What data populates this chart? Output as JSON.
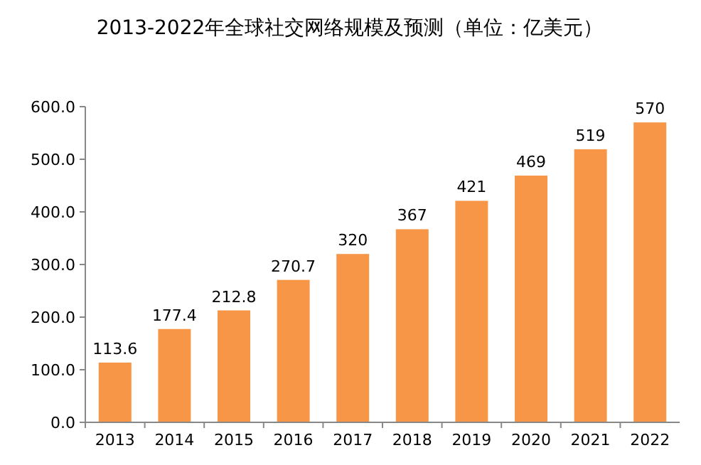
{
  "chart_data": {
    "type": "bar",
    "title": "2013-2022年全球社交网络规模及预测（单位：亿美元）",
    "categories": [
      "2013",
      "2014",
      "2015",
      "2016",
      "2017",
      "2018",
      "2019",
      "2020",
      "2021",
      "2022"
    ],
    "values": [
      113.6,
      177.4,
      212.8,
      270.7,
      320,
      367,
      421,
      469,
      519,
      570
    ],
    "color": "#f79646",
    "data_labels": true,
    "ylim": [
      0,
      600
    ],
    "yticks": [
      {
        "value": 0,
        "label": "0.0"
      },
      {
        "value": 100,
        "label": "100.0"
      },
      {
        "value": 200,
        "label": "200.0"
      },
      {
        "value": 300,
        "label": "300.0"
      },
      {
        "value": 400,
        "label": "400.0"
      },
      {
        "value": 500,
        "label": "500.0"
      },
      {
        "value": 600,
        "label": "600.0"
      }
    ]
  }
}
